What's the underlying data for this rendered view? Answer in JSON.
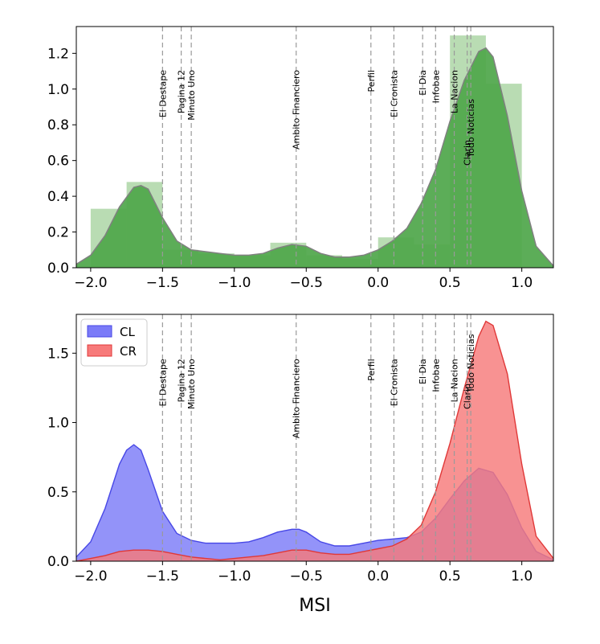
{
  "chart_data": [
    {
      "type": "area",
      "subtype": "histogram-with-kde",
      "xlim": [
        -2.1,
        1.22
      ],
      "ylim": [
        0,
        1.35
      ],
      "xticks": [
        "−2.0",
        "−1.5",
        "−1.0",
        "−0.5",
        "0.0",
        "0.5",
        "1.0"
      ],
      "xtick_values": [
        -2.0,
        -1.5,
        -1.0,
        -0.5,
        0.0,
        0.5,
        1.0
      ],
      "yticks": [
        "0.0",
        "0.2",
        "0.4",
        "0.6",
        "0.8",
        "1.0",
        "1.2"
      ],
      "ytick_values": [
        0,
        0.2,
        0.4,
        0.6,
        0.8,
        1.0,
        1.2
      ],
      "colors": {
        "hist": "#b9dcb3",
        "kde": "#4ea64a",
        "kde_line": "#808080"
      },
      "histogram": [
        {
          "x0": -2.0,
          "x1": -1.75,
          "h": 0.33
        },
        {
          "x0": -1.75,
          "x1": -1.5,
          "h": 0.48
        },
        {
          "x0": -1.5,
          "x1": -1.25,
          "h": 0.1
        },
        {
          "x0": -1.25,
          "x1": -1.0,
          "h": 0.08
        },
        {
          "x0": -1.0,
          "x1": -0.75,
          "h": 0.07
        },
        {
          "x0": -0.75,
          "x1": -0.5,
          "h": 0.14
        },
        {
          "x0": -0.5,
          "x1": -0.25,
          "h": 0.07
        },
        {
          "x0": -0.25,
          "x1": 0.0,
          "h": 0.05
        },
        {
          "x0": 0.0,
          "x1": 0.25,
          "h": 0.17
        },
        {
          "x0": 0.25,
          "x1": 0.5,
          "h": 0.13
        },
        {
          "x0": 0.5,
          "x1": 0.75,
          "h": 1.3
        },
        {
          "x0": 0.75,
          "x1": 1.0,
          "h": 1.03
        }
      ],
      "kde": {
        "x": [
          -2.1,
          -2.0,
          -1.9,
          -1.8,
          -1.7,
          -1.65,
          -1.6,
          -1.5,
          -1.4,
          -1.3,
          -1.2,
          -1.1,
          -1.0,
          -0.9,
          -0.8,
          -0.7,
          -0.6,
          -0.5,
          -0.4,
          -0.3,
          -0.2,
          -0.1,
          0.0,
          0.1,
          0.2,
          0.3,
          0.4,
          0.5,
          0.6,
          0.7,
          0.75,
          0.8,
          0.9,
          1.0,
          1.1,
          1.22
        ],
        "y": [
          0.02,
          0.07,
          0.18,
          0.34,
          0.45,
          0.46,
          0.44,
          0.28,
          0.15,
          0.1,
          0.09,
          0.08,
          0.07,
          0.07,
          0.08,
          0.11,
          0.13,
          0.12,
          0.08,
          0.06,
          0.06,
          0.07,
          0.1,
          0.15,
          0.22,
          0.36,
          0.55,
          0.82,
          1.05,
          1.21,
          1.23,
          1.18,
          0.85,
          0.43,
          0.12,
          0.01
        ]
      }
    },
    {
      "type": "area",
      "subtype": "kde",
      "xlim": [
        -2.1,
        1.22
      ],
      "ylim": [
        0,
        1.78
      ],
      "xticks": [
        "−2.0",
        "−1.5",
        "−1.0",
        "−0.5",
        "0.0",
        "0.5",
        "1.0"
      ],
      "xtick_values": [
        -2.0,
        -1.5,
        -1.0,
        -0.5,
        0.0,
        0.5,
        1.0
      ],
      "yticks": [
        "0.0",
        "0.5",
        "1.0",
        "1.5"
      ],
      "ytick_values": [
        0,
        0.5,
        1.0,
        1.5
      ],
      "xlabel": "MSI",
      "legend": {
        "position": "top-left"
      },
      "series": [
        {
          "name": "CL",
          "color": "#7b7bf8",
          "stroke": "#4747e6",
          "x": [
            -2.1,
            -2.0,
            -1.9,
            -1.8,
            -1.75,
            -1.7,
            -1.65,
            -1.6,
            -1.5,
            -1.4,
            -1.3,
            -1.2,
            -1.1,
            -1.0,
            -0.9,
            -0.8,
            -0.7,
            -0.6,
            -0.55,
            -0.5,
            -0.4,
            -0.3,
            -0.2,
            -0.1,
            0.0,
            0.1,
            0.2,
            0.3,
            0.4,
            0.5,
            0.6,
            0.7,
            0.8,
            0.9,
            1.0,
            1.1,
            1.22
          ],
          "y": [
            0.03,
            0.14,
            0.38,
            0.7,
            0.8,
            0.84,
            0.8,
            0.66,
            0.36,
            0.2,
            0.15,
            0.13,
            0.13,
            0.13,
            0.14,
            0.17,
            0.21,
            0.23,
            0.23,
            0.21,
            0.14,
            0.11,
            0.11,
            0.13,
            0.15,
            0.16,
            0.17,
            0.21,
            0.31,
            0.45,
            0.58,
            0.67,
            0.64,
            0.48,
            0.24,
            0.07,
            0.01
          ]
        },
        {
          "name": "CR",
          "color": "#f77a7a",
          "stroke": "#e03838",
          "x": [
            -2.1,
            -2.0,
            -1.9,
            -1.8,
            -1.7,
            -1.6,
            -1.5,
            -1.4,
            -1.3,
            -1.2,
            -1.1,
            -1.0,
            -0.9,
            -0.8,
            -0.7,
            -0.6,
            -0.5,
            -0.4,
            -0.3,
            -0.2,
            -0.1,
            0.0,
            0.1,
            0.2,
            0.3,
            0.4,
            0.5,
            0.6,
            0.7,
            0.75,
            0.8,
            0.9,
            1.0,
            1.1,
            1.22
          ],
          "y": [
            0.0,
            0.02,
            0.04,
            0.07,
            0.08,
            0.08,
            0.07,
            0.05,
            0.03,
            0.02,
            0.01,
            0.02,
            0.03,
            0.04,
            0.06,
            0.08,
            0.08,
            0.06,
            0.05,
            0.05,
            0.07,
            0.09,
            0.11,
            0.16,
            0.26,
            0.5,
            0.85,
            1.25,
            1.62,
            1.73,
            1.7,
            1.35,
            0.7,
            0.18,
            0.02
          ]
        }
      ]
    }
  ],
  "outlets": [
    {
      "name": "El Destape",
      "x": -1.5,
      "y_top": 0.82,
      "y_bot": 0.82
    },
    {
      "name": "Pagina 12",
      "x": -1.37,
      "y_top": 0.82,
      "y_bot": 0.82
    },
    {
      "name": "Minuto Uno",
      "x": -1.3,
      "y_top": 0.82,
      "y_bot": 0.82
    },
    {
      "name": "Ambito Financiero",
      "x": -0.57,
      "y_top": 0.82,
      "y_bot": 0.82
    },
    {
      "name": "Perfil",
      "x": -0.05,
      "y_top": 0.82,
      "y_bot": 0.82
    },
    {
      "name": "El Cronista",
      "x": 0.11,
      "y_top": 0.82,
      "y_bot": 0.82
    },
    {
      "name": "El Dia",
      "x": 0.31,
      "y_top": 0.82,
      "y_bot": 0.82
    },
    {
      "name": "Infobae",
      "x": 0.4,
      "y_top": 0.82,
      "y_bot": 0.82
    },
    {
      "name": "La Nacion",
      "x": 0.53,
      "y_top": 0.82,
      "y_bot": 0.82
    },
    {
      "name": "Clarin",
      "x": 0.62,
      "y_top": 0.53,
      "y_bot": 0.72
    },
    {
      "name": "Todo Noticias",
      "x": 0.645,
      "y_top": 0.7,
      "y_bot": 0.92
    }
  ]
}
